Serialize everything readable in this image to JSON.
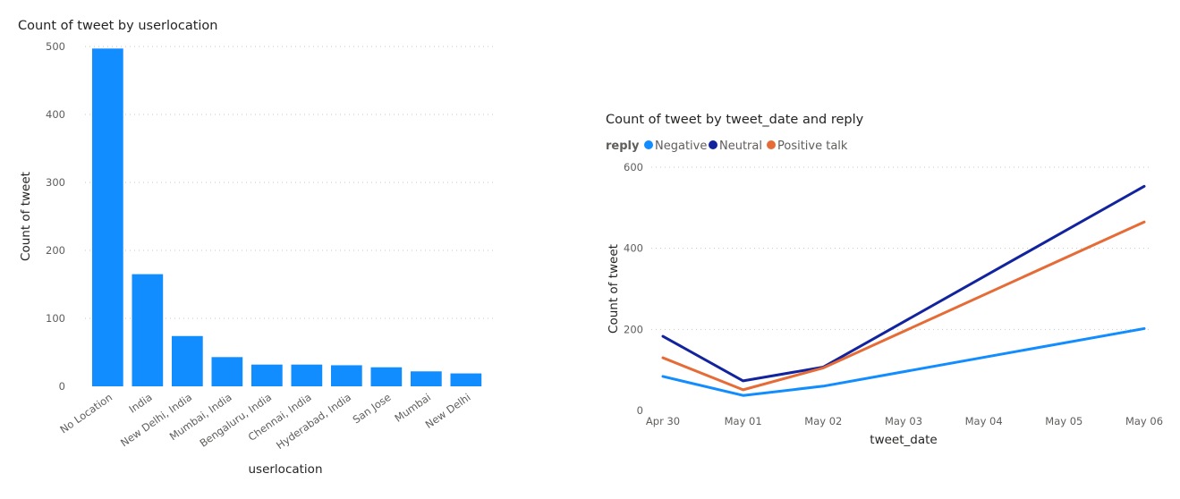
{
  "chart_data": [
    {
      "type": "bar",
      "title": "Count of tweet by userlocation",
      "xlabel": "userlocation",
      "ylabel": "Count of tweet",
      "ylim": [
        0,
        500
      ],
      "yticks": [
        "0",
        "100",
        "200",
        "300",
        "400",
        "500"
      ],
      "grid": true,
      "categories": [
        "No Location",
        "India",
        "New Delhi, India",
        "Mumbai, India",
        "Bengaluru, India",
        "Chennai, India",
        "Hyderabad, India",
        "San Jose",
        "Mumbai",
        "New Delhi"
      ],
      "values": [
        497,
        165,
        74,
        43,
        32,
        32,
        31,
        28,
        22,
        19
      ],
      "color": "#118dff"
    },
    {
      "type": "line",
      "title": "Count of tweet by tweet_date and reply",
      "xlabel": "tweet_date",
      "ylabel": "Count of tweet",
      "ylim": [
        0,
        600
      ],
      "yticks": [
        "0",
        "200",
        "400",
        "600"
      ],
      "grid": true,
      "legend_title": "reply",
      "legend_position": "top-left",
      "x": [
        "Apr 30",
        "May 01",
        "May 02",
        "May 03",
        "May 04",
        "May 05",
        "May 06"
      ],
      "series": [
        {
          "name": "Negative",
          "color": "#118dff",
          "points": [
            [
              0,
              84
            ],
            [
              1,
              37
            ],
            [
              2,
              60
            ],
            [
              6,
              202
            ]
          ]
        },
        {
          "name": "Neutral",
          "color": "#12239e",
          "points": [
            [
              0,
              183
            ],
            [
              1,
              73
            ],
            [
              2,
              107
            ],
            [
              6,
              553
            ]
          ]
        },
        {
          "name": "Positive talk",
          "color": "#e66c37",
          "points": [
            [
              0,
              130
            ],
            [
              1,
              51
            ],
            [
              2,
              105
            ],
            [
              6,
              465
            ]
          ]
        }
      ]
    }
  ]
}
